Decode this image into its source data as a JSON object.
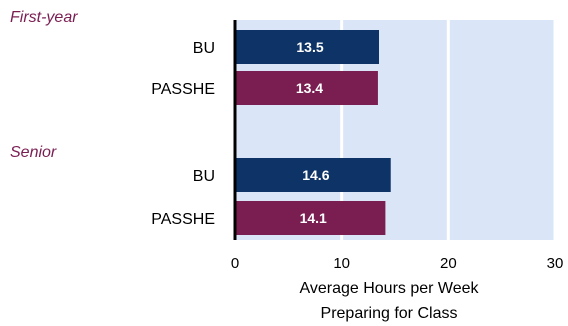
{
  "colors": {
    "plot_background": "#dae5f7",
    "gridline": "#ffffff",
    "axis": "#000000",
    "group_label": "#7a1e52",
    "bu": "#0e3467",
    "passhe": "#7a1e52"
  },
  "chart_data": {
    "type": "bar",
    "orientation": "horizontal",
    "groups": [
      {
        "label": "First-year",
        "bars": [
          {
            "category": "BU",
            "value": 13.5,
            "value_label": "13.5",
            "color_key": "bu"
          },
          {
            "category": "PASSHE",
            "value": 13.4,
            "value_label": "13.4",
            "color_key": "passhe"
          }
        ]
      },
      {
        "label": "Senior",
        "bars": [
          {
            "category": "BU",
            "value": 14.6,
            "value_label": "14.6",
            "color_key": "bu"
          },
          {
            "category": "PASSHE",
            "value": 14.1,
            "value_label": "14.1",
            "color_key": "passhe"
          }
        ]
      }
    ],
    "xlim": [
      0,
      30
    ],
    "xticks": [
      0,
      10,
      20,
      30
    ],
    "xtick_labels": [
      "0",
      "10",
      "20",
      "30"
    ],
    "xlabel_lines": [
      "Average Hours per Week",
      "Preparing for Class"
    ],
    "grid": "vertical",
    "legend": "none"
  }
}
